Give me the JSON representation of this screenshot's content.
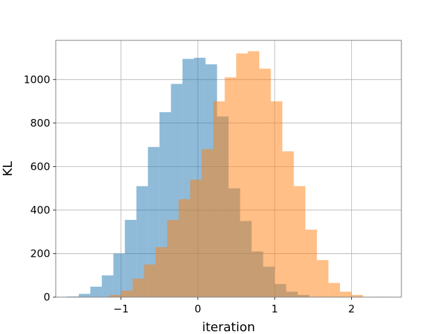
{
  "chart_data": {
    "type": "bar",
    "title": "",
    "xlabel": "iteration",
    "ylabel": "KL",
    "xlim": [
      -1.85,
      2.65
    ],
    "ylim": [
      0,
      1180
    ],
    "grid": true,
    "xticks": [
      -1,
      0,
      1,
      2
    ],
    "xtick_labels": [
      "−1",
      "0",
      "1",
      "2"
    ],
    "yticks": [
      0,
      200,
      400,
      600,
      800,
      1000
    ],
    "ytick_labels": [
      "0",
      "200",
      "400",
      "600",
      "800",
      "1000"
    ],
    "series": [
      {
        "color": "#1f77b4",
        "opacity": 0.5,
        "bin_edges": [
          -1.7,
          -1.55,
          -1.4,
          -1.25,
          -1.1,
          -0.95,
          -0.8,
          -0.65,
          -0.5,
          -0.35,
          -0.2,
          -0.05,
          0.1,
          0.25,
          0.4,
          0.55,
          0.7,
          0.85,
          1.0,
          1.15,
          1.3,
          1.45
        ],
        "counts": [
          3,
          15,
          48,
          100,
          200,
          355,
          510,
          690,
          850,
          980,
          1095,
          1100,
          1070,
          830,
          500,
          350,
          210,
          140,
          60,
          25,
          10
        ]
      },
      {
        "color": "#ff7f0e",
        "opacity": 0.5,
        "bin_edges": [
          -1.15,
          -1.0,
          -0.85,
          -0.7,
          -0.55,
          -0.4,
          -0.25,
          -0.1,
          0.05,
          0.2,
          0.35,
          0.5,
          0.65,
          0.8,
          0.95,
          1.1,
          1.25,
          1.4,
          1.55,
          1.7,
          1.85,
          2.0,
          2.15,
          2.3,
          2.45
        ],
        "counts": [
          10,
          30,
          85,
          150,
          230,
          355,
          450,
          540,
          680,
          900,
          1010,
          1120,
          1130,
          1050,
          900,
          670,
          510,
          310,
          170,
          65,
          25,
          10,
          0,
          2
        ]
      }
    ]
  }
}
